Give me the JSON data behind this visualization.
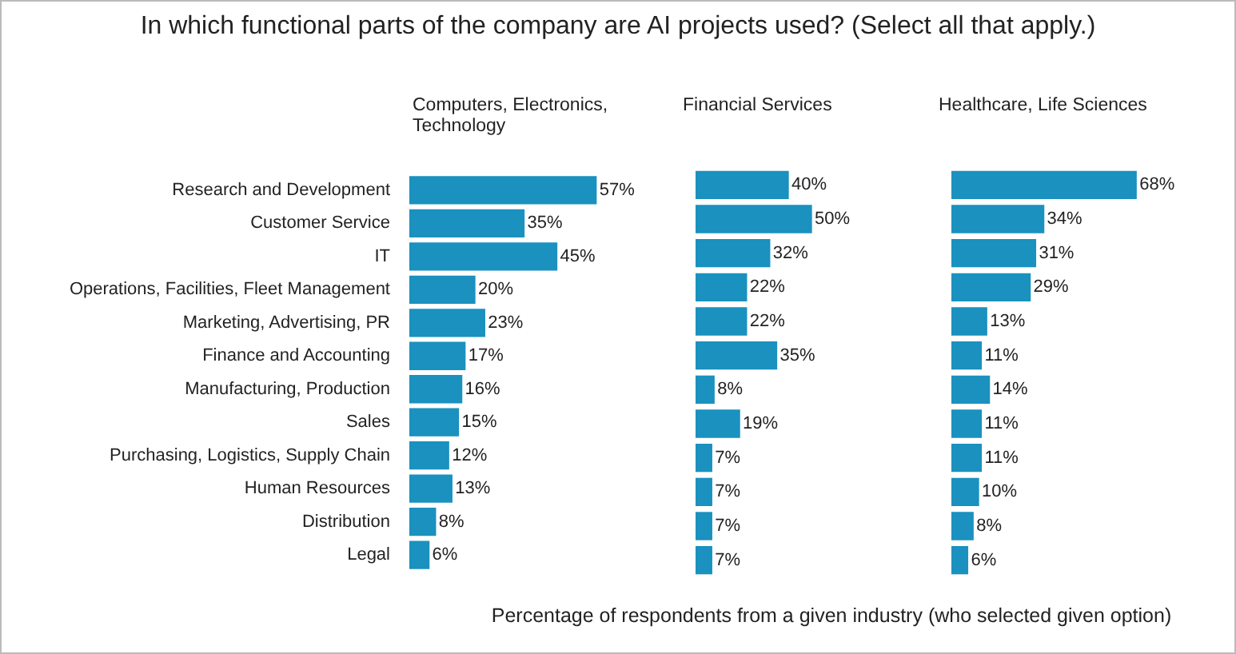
{
  "chart_data": [
    {
      "type": "bar",
      "orientation": "horizontal",
      "title": "Computers, Electronics, Technology",
      "annotations": [
        "In which functional parts of the company are AI projects used?  (Select all that apply.)"
      ],
      "tick_labels": "y",
      "grid": false,
      "categories": [
        "Research and Development",
        "Customer Service",
        "IT",
        "Operations, Facilities, Fleet Management",
        "Marketing, Advertising, PR",
        "Finance and Accounting",
        "Manufacturing, Production",
        "Sales",
        "Purchasing, Logistics, Supply Chain",
        "Human Resources",
        "Distribution",
        "Legal"
      ],
      "series": [
        {
          "color": "#1a91bf",
          "values": [
            57,
            35,
            45,
            20,
            23,
            17,
            16,
            15,
            12,
            13,
            8,
            6
          ],
          "value_labels": [
            "57%",
            "35%",
            "45%",
            "20%",
            "23%",
            "17%",
            "16%",
            "15%",
            "12%",
            "13%",
            "8%",
            "6%"
          ]
        }
      ]
    },
    {
      "type": "bar",
      "orientation": "horizontal",
      "title": "Financial Services",
      "xlabel": "Percentage of respondents from a given industry (who selected given option)",
      "tick_labels": false,
      "grid": false,
      "series": [
        {
          "color": "#1a91bf",
          "values": [
            40,
            50,
            32,
            22,
            22,
            35,
            8,
            19,
            7,
            7,
            7,
            7
          ],
          "value_labels": [
            "40%",
            "50%",
            "32%",
            "22%",
            "22%",
            "35%",
            "8%",
            "19%",
            "7%",
            "7%",
            "7%",
            "7%"
          ]
        }
      ]
    },
    {
      "type": "bar",
      "orientation": "horizontal",
      "title": "Healthcare, Life Sciences",
      "tick_labels": false,
      "grid": false,
      "series": [
        {
          "color": "#1a91bf",
          "values": [
            68,
            34,
            31,
            29,
            13,
            11,
            14,
            11,
            11,
            10,
            8,
            6
          ],
          "value_labels": [
            "68%",
            "34%",
            "31%",
            "29%",
            "13%",
            "11%",
            "14%",
            "11%",
            "11%",
            "10%",
            "8%",
            "6%"
          ]
        }
      ]
    }
  ]
}
